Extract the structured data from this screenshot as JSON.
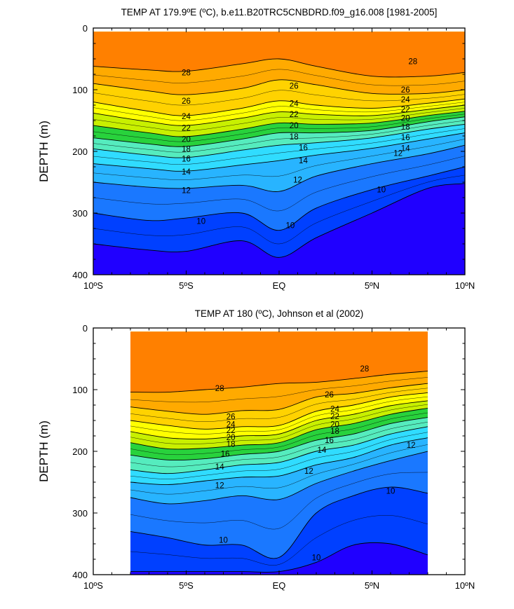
{
  "chart_data": [
    {
      "type": "heatmap",
      "subtype": "filled-contour",
      "title": "TEMP AT 179.9ºE (ºC), b.e11.B20TRC5CNBDRD.f09_g16.008 [1981-2005]",
      "xlabel": "",
      "ylabel": "DEPTH (m)",
      "xlim": [
        -10,
        10
      ],
      "ylim": [
        0,
        400
      ],
      "y_inverted": true,
      "x_tick_labels": [
        "10ºS",
        "5ºS",
        "EQ",
        "5ºN",
        "10ºN"
      ],
      "y_tick_labels": [
        "0",
        "100",
        "200",
        "300",
        "400"
      ],
      "data_extent_x": [
        -10,
        10
      ],
      "x": [
        -10,
        -7,
        -5,
        -2,
        0,
        2,
        5,
        8,
        10
      ],
      "isotherm_depths": {
        "28": [
          62,
          68,
          70,
          58,
          50,
          62,
          78,
          78,
          72
        ],
        "26": [
          90,
          102,
          108,
          98,
          84,
          92,
          106,
          106,
          100
        ],
        "24": [
          120,
          135,
          142,
          130,
          118,
          125,
          130,
          122,
          115
        ],
        "22": [
          138,
          152,
          158,
          146,
          136,
          140,
          142,
          132,
          125
        ],
        "20": [
          158,
          170,
          176,
          164,
          154,
          156,
          154,
          142,
          135
        ],
        "18": [
          178,
          188,
          192,
          180,
          170,
          170,
          166,
          152,
          144
        ],
        "16": [
          196,
          206,
          210,
          198,
          190,
          186,
          178,
          164,
          156
        ],
        "14": [
          220,
          228,
          232,
          222,
          215,
          206,
          195,
          180,
          170
        ],
        "12": [
          250,
          258,
          260,
          255,
          265,
          240,
          220,
          204,
          190
        ],
        "10": [
          300,
          312,
          308,
          300,
          328,
          292,
          262,
          240,
          225
        ],
        "8": [
          350,
          360,
          362,
          345,
          372,
          340,
          300,
          260,
          252
        ]
      },
      "contour_labels": [
        {
          "text": "28",
          "x": -5,
          "y": 72
        },
        {
          "text": "28",
          "x": 7.2,
          "y": 54
        },
        {
          "text": "26",
          "x": -5,
          "y": 118
        },
        {
          "text": "26",
          "x": 0.8,
          "y": 94
        },
        {
          "text": "26",
          "x": 6.8,
          "y": 100
        },
        {
          "text": "24",
          "x": -5,
          "y": 143
        },
        {
          "text": "24",
          "x": 0.8,
          "y": 122
        },
        {
          "text": "24",
          "x": 6.8,
          "y": 116
        },
        {
          "text": "22",
          "x": -5,
          "y": 162
        },
        {
          "text": "22",
          "x": 0.8,
          "y": 140
        },
        {
          "text": "22",
          "x": 6.8,
          "y": 132
        },
        {
          "text": "20",
          "x": -5,
          "y": 180
        },
        {
          "text": "20",
          "x": 0.8,
          "y": 158
        },
        {
          "text": "20",
          "x": 6.8,
          "y": 146
        },
        {
          "text": "18",
          "x": -5,
          "y": 196
        },
        {
          "text": "18",
          "x": 0.8,
          "y": 176
        },
        {
          "text": "18",
          "x": 6.8,
          "y": 160
        },
        {
          "text": "16",
          "x": -5,
          "y": 212
        },
        {
          "text": "16",
          "x": 1.3,
          "y": 194
        },
        {
          "text": "16",
          "x": 6.8,
          "y": 177
        },
        {
          "text": "14",
          "x": -5,
          "y": 233
        },
        {
          "text": "14",
          "x": 1.3,
          "y": 215
        },
        {
          "text": "14",
          "x": 6.8,
          "y": 195
        },
        {
          "text": "12",
          "x": -5,
          "y": 263
        },
        {
          "text": "12",
          "x": 1,
          "y": 246
        },
        {
          "text": "12",
          "x": 6.4,
          "y": 203
        },
        {
          "text": "10",
          "x": -4.2,
          "y": 313
        },
        {
          "text": "10",
          "x": 0.6,
          "y": 320
        },
        {
          "text": "10",
          "x": 5.5,
          "y": 262
        }
      ]
    },
    {
      "type": "heatmap",
      "subtype": "filled-contour",
      "title": "TEMP AT 180 (ºC), Johnson et al (2002)",
      "xlabel": "",
      "ylabel": "DEPTH (m)",
      "xlim": [
        -10,
        10
      ],
      "ylim": [
        0,
        400
      ],
      "y_inverted": true,
      "x_tick_labels": [
        "10ºS",
        "5ºS",
        "EQ",
        "5ºN",
        "10ºN"
      ],
      "y_tick_labels": [
        "0",
        "100",
        "200",
        "300",
        "400"
      ],
      "data_extent_x": [
        -8,
        8
      ],
      "x": [
        -8,
        -6,
        -4,
        -2,
        0,
        2,
        4,
        6,
        8
      ],
      "isotherm_depths": {
        "28": [
          104,
          104,
          100,
          96,
          90,
          88,
          82,
          75,
          70
        ],
        "26": [
          128,
          135,
          140,
          134,
          132,
          112,
          106,
          97,
          90
        ],
        "24": [
          150,
          158,
          164,
          160,
          158,
          135,
          125,
          112,
          105
        ],
        "22": [
          168,
          178,
          180,
          175,
          172,
          150,
          140,
          126,
          118
        ],
        "20": [
          186,
          196,
          195,
          190,
          186,
          165,
          155,
          140,
          130
        ],
        "18": [
          206,
          214,
          212,
          205,
          200,
          182,
          172,
          155,
          145
        ],
        "16": [
          230,
          236,
          230,
          222,
          218,
          200,
          190,
          172,
          160
        ],
        "14": [
          250,
          254,
          248,
          242,
          240,
          222,
          210,
          190,
          178
        ],
        "12": [
          275,
          285,
          280,
          272,
          278,
          252,
          232,
          215,
          200
        ],
        "10": [
          330,
          340,
          352,
          352,
          372,
          300,
          272,
          258,
          268
        ],
        "8": [
          395,
          395,
          395,
          395,
          395,
          380,
          352,
          350,
          368
        ]
      },
      "contour_labels": [
        {
          "text": "28",
          "x": -3.2,
          "y": 98
        },
        {
          "text": "28",
          "x": 4.6,
          "y": 66
        },
        {
          "text": "26",
          "x": -2.6,
          "y": 144
        },
        {
          "text": "26",
          "x": 2.7,
          "y": 108
        },
        {
          "text": "24",
          "x": -2.6,
          "y": 156
        },
        {
          "text": "24",
          "x": 3,
          "y": 131
        },
        {
          "text": "22",
          "x": -2.6,
          "y": 166
        },
        {
          "text": "22",
          "x": 3,
          "y": 143
        },
        {
          "text": "20",
          "x": -2.6,
          "y": 177
        },
        {
          "text": "20",
          "x": 3,
          "y": 156
        },
        {
          "text": "18",
          "x": -2.6,
          "y": 188
        },
        {
          "text": "18",
          "x": 3,
          "y": 167
        },
        {
          "text": "16",
          "x": -2.9,
          "y": 204
        },
        {
          "text": "16",
          "x": 2.7,
          "y": 182
        },
        {
          "text": "14",
          "x": -3.2,
          "y": 225
        },
        {
          "text": "14",
          "x": 2.3,
          "y": 198
        },
        {
          "text": "12",
          "x": -3.2,
          "y": 255
        },
        {
          "text": "12",
          "x": 1.6,
          "y": 232
        },
        {
          "text": "12",
          "x": 7.1,
          "y": 190
        },
        {
          "text": "10",
          "x": -3,
          "y": 344
        },
        {
          "text": "10",
          "x": 2,
          "y": 372
        },
        {
          "text": "10",
          "x": 6,
          "y": 264
        }
      ]
    }
  ],
  "contour_colors": [
    "#2000ff",
    "#0040ff",
    "#1a78ff",
    "#28b4ff",
    "#30dcff",
    "#55ecbe",
    "#28d23c",
    "#c8f000",
    "#ffff00",
    "#ffd200",
    "#ffaa00",
    "#ff8000",
    "#ff4a00",
    "#ff0000"
  ]
}
